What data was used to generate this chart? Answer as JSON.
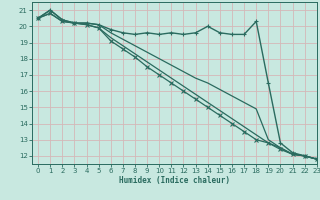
{
  "xlabel": "Humidex (Indice chaleur)",
  "xlim": [
    -0.5,
    23
  ],
  "ylim": [
    11.5,
    21.5
  ],
  "xticks": [
    0,
    1,
    2,
    3,
    4,
    5,
    6,
    7,
    8,
    9,
    10,
    11,
    12,
    13,
    14,
    15,
    16,
    17,
    18,
    19,
    20,
    21,
    22,
    23
  ],
  "yticks": [
    12,
    13,
    14,
    15,
    16,
    17,
    18,
    19,
    20,
    21
  ],
  "bg_color": "#c8e8e0",
  "line_color": "#2a6b5f",
  "grid_color": "#d4b8b8",
  "lines": [
    {
      "y": [
        20.5,
        21.0,
        20.4,
        20.2,
        20.2,
        20.1,
        19.8,
        19.6,
        19.5,
        19.6,
        19.5,
        19.6,
        19.5,
        19.6,
        20.0,
        19.6,
        19.5,
        19.5,
        20.3,
        16.5,
        12.8,
        12.2,
        12.0,
        11.8
      ],
      "marker": "+",
      "markersize": 3,
      "lw": 1.0
    },
    {
      "y": [
        20.5,
        21.0,
        20.4,
        20.2,
        20.2,
        20.1,
        19.6,
        19.2,
        18.8,
        18.4,
        18.0,
        17.6,
        17.2,
        16.8,
        16.5,
        16.1,
        15.7,
        15.3,
        14.9,
        13.0,
        12.5,
        12.1,
        12.0,
        11.8
      ],
      "marker": null,
      "markersize": 0,
      "lw": 0.9
    },
    {
      "y": [
        20.5,
        20.8,
        20.3,
        20.2,
        20.1,
        19.9,
        19.3,
        18.8,
        18.3,
        17.8,
        17.3,
        16.8,
        16.3,
        15.8,
        15.3,
        14.8,
        14.3,
        13.8,
        13.3,
        12.8,
        12.5,
        12.1,
        12.0,
        11.8
      ],
      "marker": null,
      "markersize": 0,
      "lw": 0.9
    },
    {
      "y": [
        20.5,
        20.8,
        20.3,
        20.2,
        20.1,
        19.9,
        19.1,
        18.6,
        18.1,
        17.5,
        17.0,
        16.5,
        16.0,
        15.5,
        15.0,
        14.5,
        14.0,
        13.5,
        13.0,
        12.8,
        12.4,
        12.1,
        12.0,
        11.8
      ],
      "marker": "x",
      "markersize": 2.5,
      "lw": 0.9
    }
  ]
}
